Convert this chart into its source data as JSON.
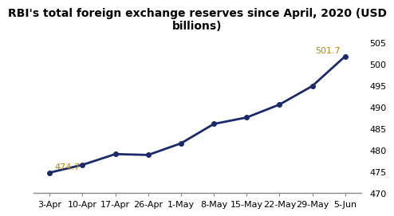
{
  "title": "RBI's total foreign exchange reserves since April, 2020 (USD\nbillions)",
  "x_labels": [
    "3-Apr",
    "10-Apr",
    "17-Apr",
    "26-Apr",
    "1-May",
    "8-May",
    "15-May",
    "22-May",
    "29-May",
    "5-Jun"
  ],
  "y_values": [
    474.7,
    476.5,
    479.0,
    478.8,
    481.5,
    486.0,
    487.5,
    490.5,
    494.8,
    501.7
  ],
  "ann_first_label": "474.7",
  "ann_first_index": 0,
  "ann_last_label": "501.7",
  "ann_last_index": 9,
  "ann_color": "#b8860b",
  "line_color": "#1b2a6b",
  "marker": "o",
  "marker_size": 4,
  "linewidth": 2.0,
  "ylim": [
    470,
    506
  ],
  "yticks": [
    470,
    475,
    480,
    485,
    490,
    495,
    500,
    505
  ],
  "title_fontsize": 10,
  "tick_fontsize": 8,
  "annotation_fontsize": 8,
  "background_color": "#ffffff",
  "spine_color": "#888888"
}
